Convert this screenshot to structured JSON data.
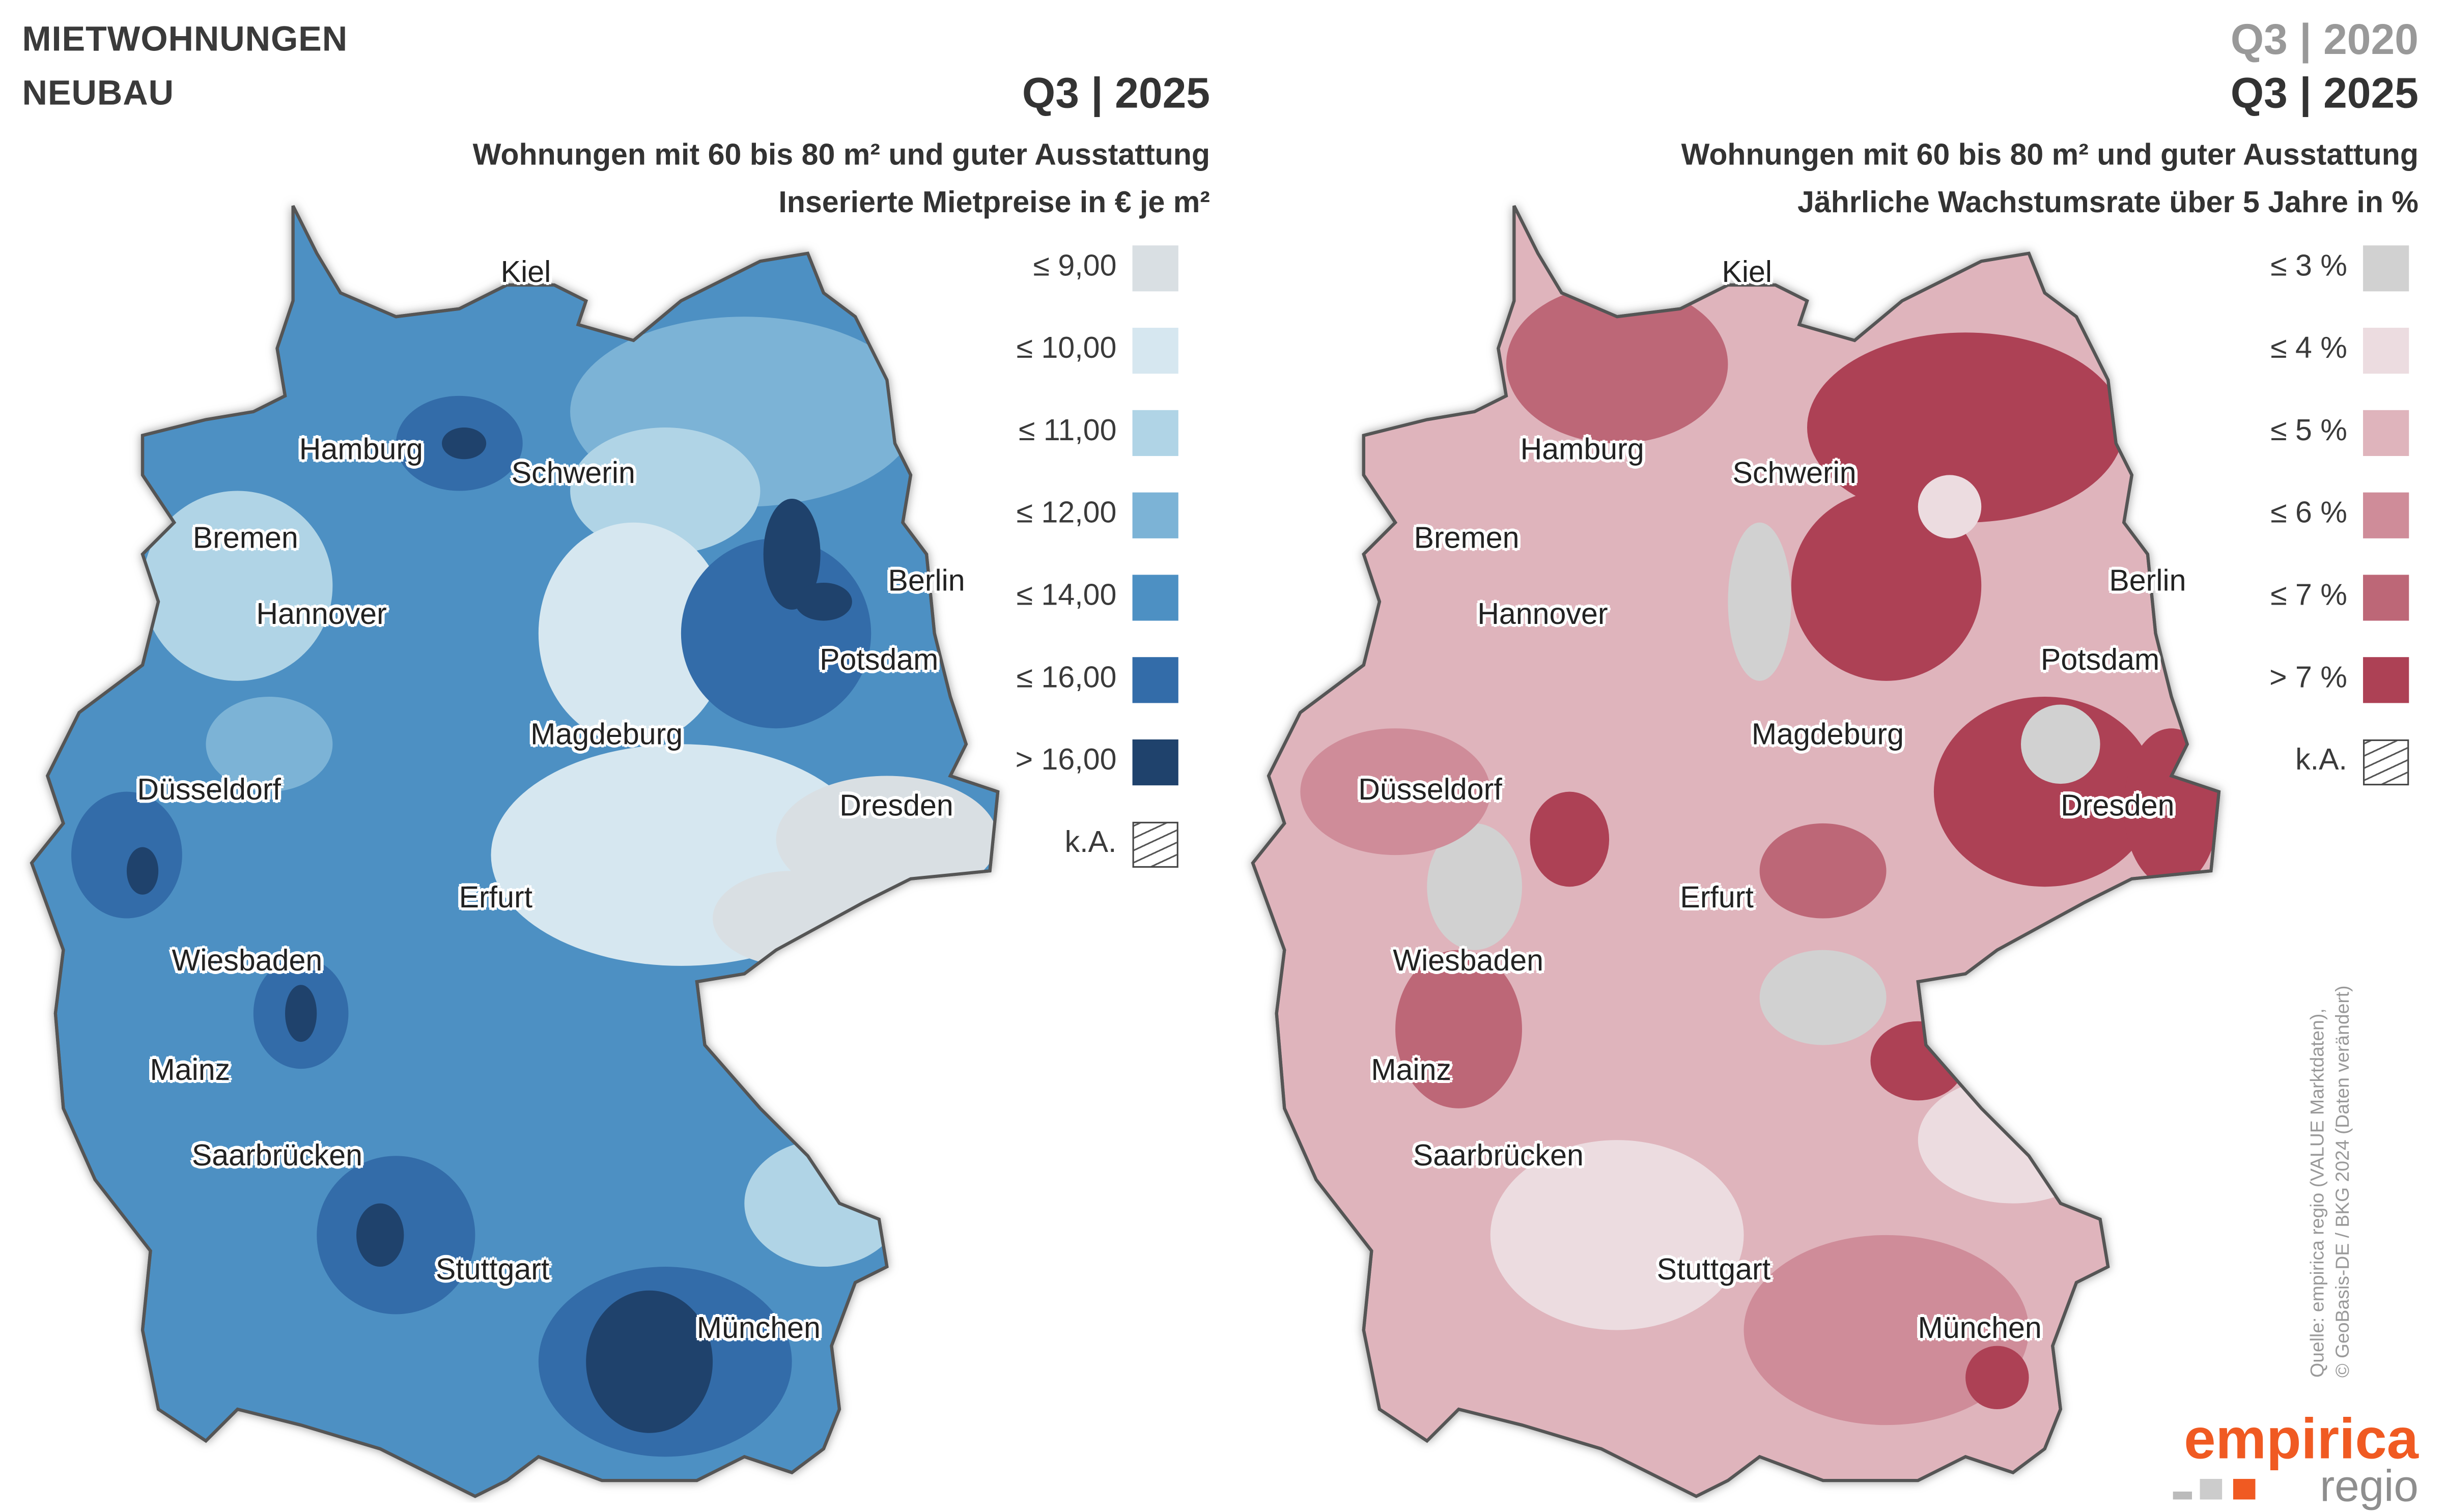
{
  "header": {
    "title_line1": "MIETWOHNUNGEN",
    "title_line2": "NEUBAU"
  },
  "left_map": {
    "quarter": "Q3 | 2025",
    "subtitle1": "Wohnungen mit 60 bis 80 m² und guter Ausstattung",
    "subtitle2": "Inserierte Mietpreise in € je m²",
    "legend": [
      {
        "label": "≤ 9,00",
        "color": "#d9dfe3"
      },
      {
        "label": "≤ 10,00",
        "color": "#d6e7f0"
      },
      {
        "label": "≤ 11,00",
        "color": "#b0d4e6"
      },
      {
        "label": "≤ 12,00",
        "color": "#7cb3d6"
      },
      {
        "label": "≤ 14,00",
        "color": "#4d90c3"
      },
      {
        "label": "≤ 16,00",
        "color": "#336ca9"
      },
      {
        "label": "> 16,00",
        "color": "#1f426c"
      },
      {
        "label": "k.A.",
        "color": "hatch"
      }
    ]
  },
  "right_map": {
    "quarter_from": "Q3 | 2020",
    "quarter_to": "Q3 | 2025",
    "subtitle1": "Wohnungen mit 60 bis 80 m² und guter Ausstattung",
    "subtitle2": "Jährliche Wachstumsrate über 5 Jahre in %",
    "legend": [
      {
        "label": "≤ 3 %",
        "color": "#d1d1d1"
      },
      {
        "label": "≤ 4 %",
        "color": "#ecdce0"
      },
      {
        "label": "≤ 5 %",
        "color": "#dfb4bc"
      },
      {
        "label": "≤ 6 %",
        "color": "#cf8c99"
      },
      {
        "label": "≤ 7 %",
        "color": "#bd6777"
      },
      {
        "label": "> 7 %",
        "color": "#ad4155"
      },
      {
        "label": "k.A.",
        "color": "hatch"
      }
    ]
  },
  "cities": [
    "Kiel",
    "Hamburg",
    "Schwerin",
    "Bremen",
    "Hannover",
    "Berlin",
    "Potsdam",
    "Magdeburg",
    "Düsseldorf",
    "Dresden",
    "Erfurt",
    "Wiesbaden",
    "Mainz",
    "Saarbrücken",
    "Stuttgart",
    "München"
  ],
  "source": {
    "line1": "Quelle: empirica regio (VALUE Marktdaten),",
    "line2": "© GeoBasis-DE / BKG 2024 (Daten verändert)"
  },
  "logo": {
    "brand": "empirica",
    "sub": "regio"
  }
}
